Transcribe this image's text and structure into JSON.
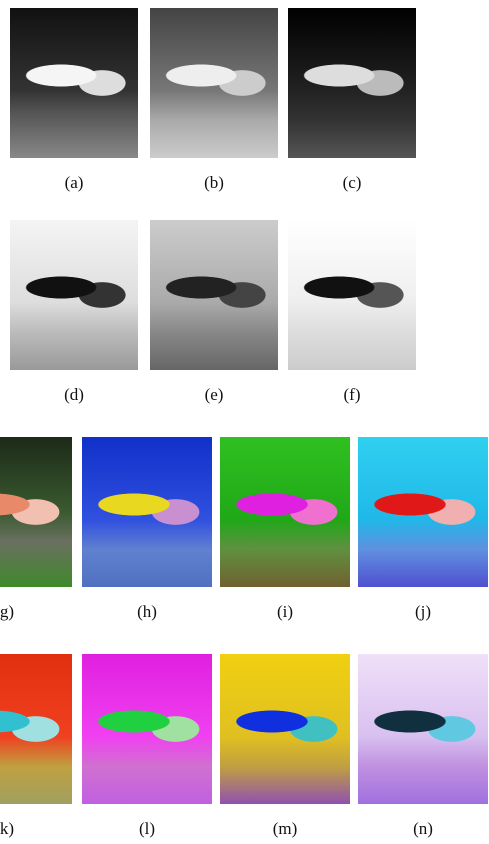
{
  "figure": {
    "rows": [
      [
        "(a)",
        "(b)",
        "(c)"
      ],
      [
        "(d)",
        "(e)",
        "(f)"
      ],
      [
        "g)",
        "(h)",
        "(i)",
        "(j)"
      ],
      [
        "k)",
        "(l)",
        "(m)",
        "(n)"
      ]
    ]
  }
}
